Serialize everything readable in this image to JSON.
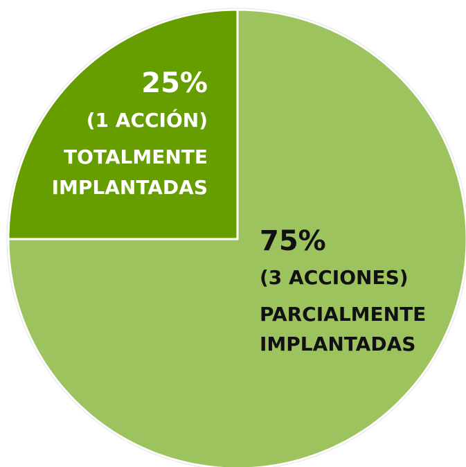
{
  "chart_data": {
    "type": "pie",
    "categories": [
      [
        "TOTALMENTE",
        "IMPLANTADAS"
      ],
      [
        "PARCIALMENTE",
        "IMPLANTADAS"
      ]
    ],
    "values": [
      25,
      75
    ],
    "value_labels": [
      "25%",
      "75%"
    ],
    "annotations": [
      "(1 ACCIÓN)",
      "(3 ACCIONES)"
    ],
    "colors": [
      "#669e00",
      "#9dc35e"
    ],
    "label_colors": [
      "#ffffff",
      "#111111"
    ]
  }
}
